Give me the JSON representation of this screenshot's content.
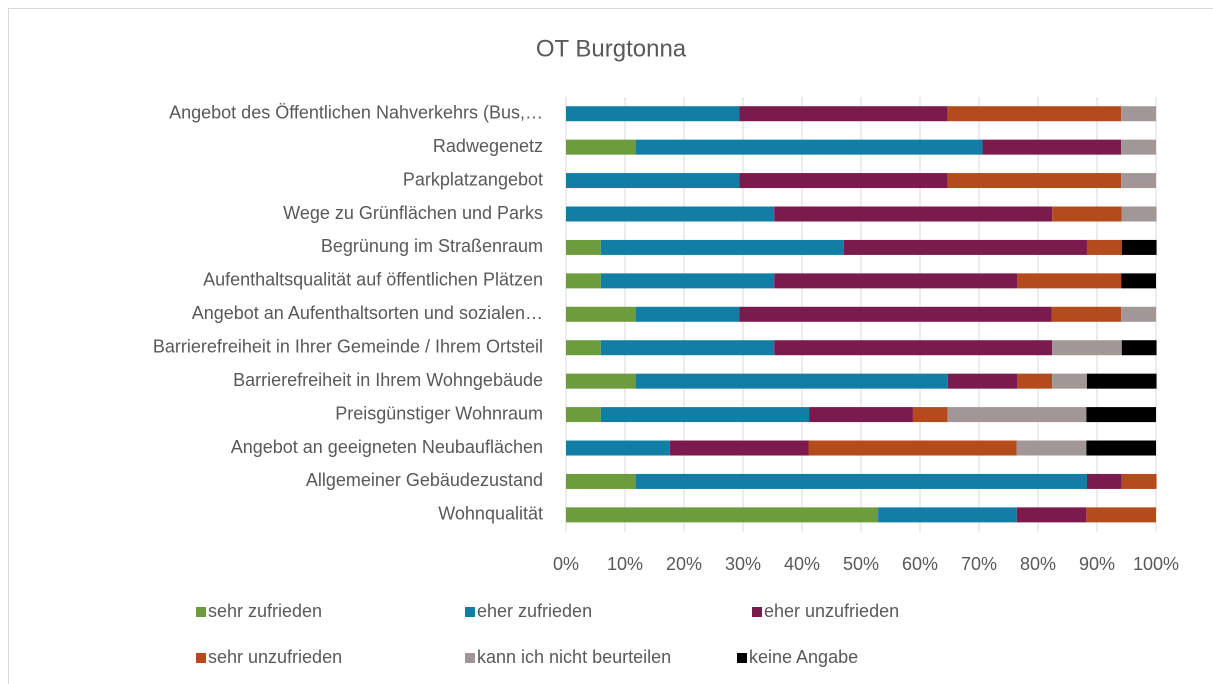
{
  "chart_data": {
    "type": "stacked_barh",
    "title": "OT Burgtonna",
    "categories": [
      "Angebot des Öffentlichen Nahverkehrs (Bus,…",
      "Radwegenetz",
      "Parkplatzangebot",
      "Wege zu Grünflächen und Parks",
      "Begrünung im Straßenraum",
      "Aufenthaltsqualität auf öffentlichen Plätzen",
      "Angebot an Aufenthaltsorten und sozialen…",
      "Barrierefreiheit in Ihrer Gemeinde / Ihrem Ortsteil",
      "Barrierefreiheit in Ihrem Wohngebäude",
      "Preisgünstiger Wohnraum",
      "Angebot an geeigneten Neubauflächen",
      "Allgemeiner Gebäudezustand",
      "Wohnqualität"
    ],
    "series": [
      {
        "name": "sehr zufrieden",
        "color": "#6c9c3c",
        "values": [
          0,
          11.8,
          0,
          0,
          5.9,
          5.9,
          11.8,
          5.9,
          11.8,
          5.9,
          0,
          11.8,
          52.9
        ]
      },
      {
        "name": "eher zufrieden",
        "color": "#127ea6",
        "values": [
          29.4,
          58.8,
          29.4,
          35.3,
          41.2,
          29.4,
          17.6,
          29.4,
          52.9,
          35.3,
          17.6,
          76.5,
          23.5
        ]
      },
      {
        "name": "eher unzufrieden",
        "color": "#7b1a4c",
        "values": [
          35.3,
          23.5,
          35.3,
          47.1,
          41.2,
          41.2,
          52.9,
          47.1,
          11.8,
          17.6,
          23.5,
          5.9,
          11.8
        ]
      },
      {
        "name": "sehr unzufrieden",
        "color": "#b44b1c",
        "values": [
          29.4,
          0,
          29.4,
          11.8,
          5.9,
          17.6,
          11.8,
          0,
          5.9,
          5.9,
          35.3,
          5.9,
          11.8
        ]
      },
      {
        "name": "kann ich nicht beurteilen",
        "color": "#a29797",
        "values": [
          5.9,
          5.9,
          5.9,
          5.9,
          0,
          0,
          5.9,
          11.8,
          5.9,
          23.5,
          11.8,
          0,
          0
        ]
      },
      {
        "name": "keine Angabe",
        "color": "#000000",
        "values": [
          0,
          0,
          0,
          0,
          5.9,
          5.9,
          0,
          5.9,
          11.8,
          11.8,
          11.8,
          0,
          0
        ]
      }
    ],
    "xlim": [
      0,
      100
    ],
    "xticks": [
      {
        "value": 0,
        "label": "0%"
      },
      {
        "value": 10,
        "label": "10%"
      },
      {
        "value": 20,
        "label": "20%"
      },
      {
        "value": 30,
        "label": "30%"
      },
      {
        "value": 40,
        "label": "40%"
      },
      {
        "value": 50,
        "label": "50%"
      },
      {
        "value": 60,
        "label": "60%"
      },
      {
        "value": 70,
        "label": "70%"
      },
      {
        "value": 80,
        "label": "80%"
      },
      {
        "value": 90,
        "label": "90%"
      },
      {
        "value": 100,
        "label": "100%"
      }
    ],
    "grid": true
  }
}
